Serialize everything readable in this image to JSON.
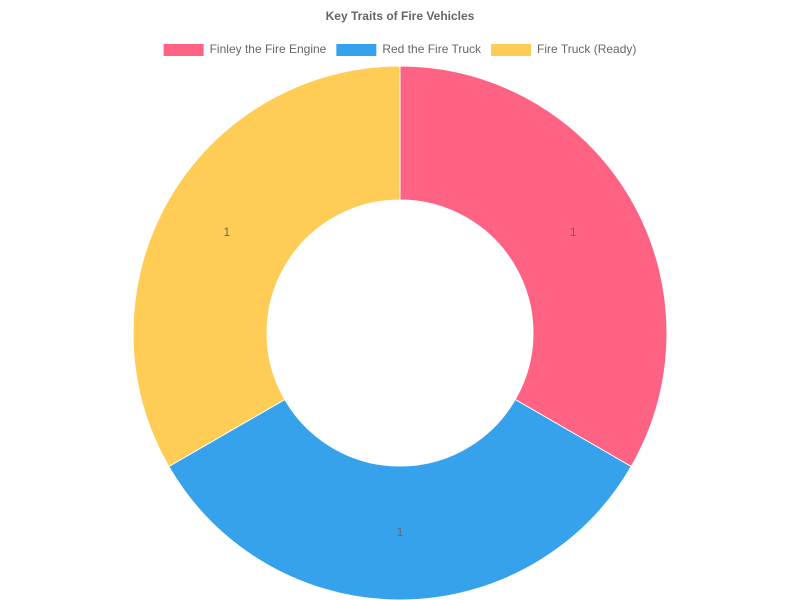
{
  "chart_data": {
    "type": "doughnut",
    "title": "Key Traits of Fire Vehicles",
    "categories": [
      "Finley the Fire Engine",
      "Red the Fire Truck",
      "Fire Truck (Ready)"
    ],
    "values": [
      1,
      1,
      1
    ],
    "colors": [
      "#ff6384",
      "#36a2eb",
      "#ffcd56"
    ],
    "legend": "top"
  }
}
